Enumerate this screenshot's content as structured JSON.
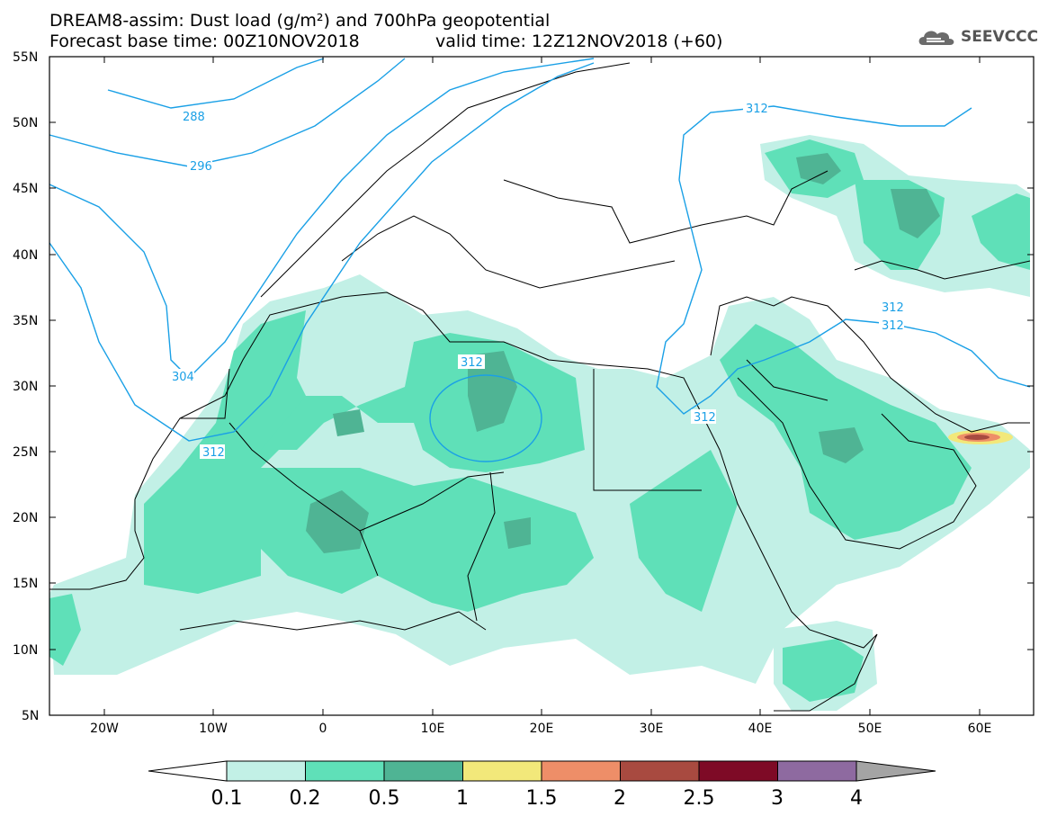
{
  "title": {
    "line1": "DREAM8-assim: Dust load (g/m²) and 700hPa geopotential",
    "line2a": "Forecast base time: 00Z10NOV2018",
    "line2b": "valid time: 12Z12NOV2018 (+60)"
  },
  "logo": {
    "text": "SEEVCCC",
    "icon": "cloud-logo-icon"
  },
  "axes": {
    "lat_labels": [
      "55N",
      "50N",
      "45N",
      "40N",
      "35N",
      "30N",
      "25N",
      "20N",
      "15N",
      "10N",
      "5N"
    ],
    "lon_labels": [
      "20W",
      "10W",
      "0",
      "10E",
      "20E",
      "30E",
      "40E",
      "50E",
      "60E"
    ]
  },
  "contours": {
    "labels": [
      "288",
      "296",
      "304",
      "312",
      "312",
      "312",
      "312",
      "312",
      "312"
    ],
    "color": "#1aa0e6"
  },
  "colorbar": {
    "ticks": [
      "0.1",
      "0.2",
      "0.5",
      "1",
      "1.5",
      "2",
      "2.5",
      "3",
      "4"
    ],
    "colors": [
      "#c2f0e6",
      "#5fe0b8",
      "#4fb494",
      "#f2e87a",
      "#ee8e68",
      "#a84a40",
      "#7e0a26",
      "#8e6aa0",
      "#a4a4a4"
    ]
  }
}
